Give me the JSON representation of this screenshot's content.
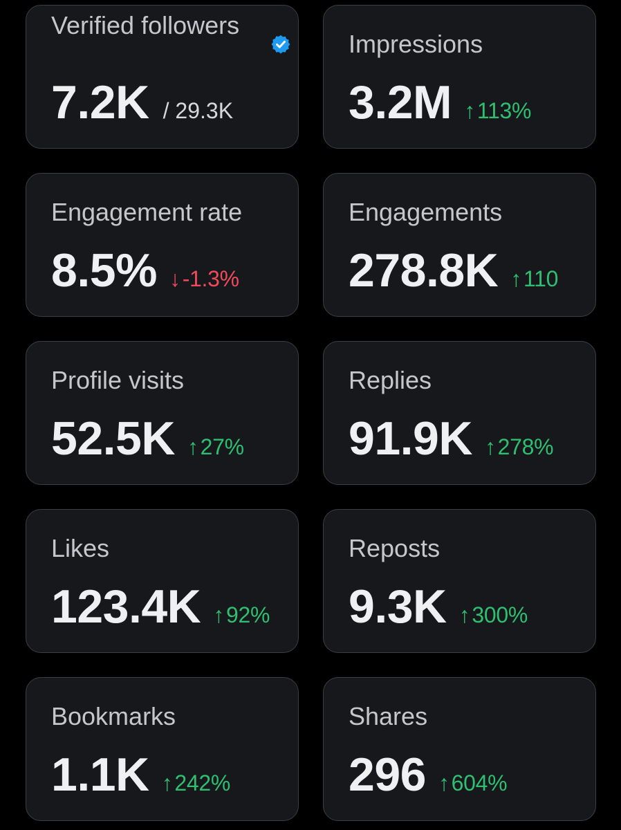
{
  "cards": [
    {
      "label": "Verified followers",
      "value": "7.2K",
      "total": "/ 29.3K",
      "icon": "verified-badge-icon",
      "accent": "#1d9bf0"
    },
    {
      "label": "Impressions",
      "value": "3.2M",
      "delta": "113%",
      "trend": "up"
    },
    {
      "label": "Engagement rate",
      "value": "8.5%",
      "delta": "-1.3%",
      "trend": "down"
    },
    {
      "label": "Engagements",
      "value": "278.8K",
      "delta": "110",
      "trend": "up"
    },
    {
      "label": "Profile visits",
      "value": "52.5K",
      "delta": "27%",
      "trend": "up"
    },
    {
      "label": "Replies",
      "value": "91.9K",
      "delta": "278%",
      "trend": "up"
    },
    {
      "label": "Likes",
      "value": "123.4K",
      "delta": "92%",
      "trend": "up"
    },
    {
      "label": "Reposts",
      "value": "9.3K",
      "delta": "300%",
      "trend": "up"
    },
    {
      "label": "Bookmarks",
      "value": "1.1K",
      "delta": "242%",
      "trend": "up"
    },
    {
      "label": "Shares",
      "value": "296",
      "delta": "604%",
      "trend": "up"
    }
  ],
  "arrows": {
    "up": "↑",
    "down": "↓"
  },
  "colors": {
    "background": "#000000",
    "card": "#16181c",
    "border": "#3a3f45",
    "up": "#2fbf71",
    "down": "#f04a5b"
  }
}
